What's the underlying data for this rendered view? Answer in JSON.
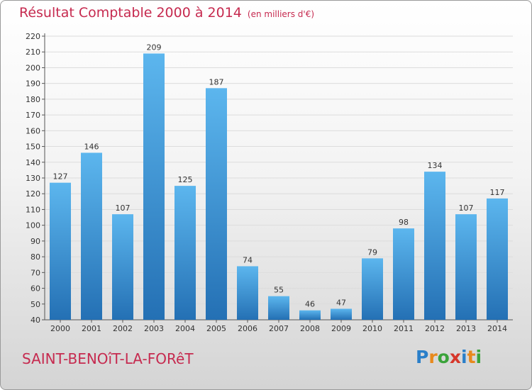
{
  "chart_data": {
    "type": "bar",
    "title": "Résultat Comptable 2000 à 2014",
    "subtitle": "(en milliers d'€)",
    "categories": [
      "2000",
      "2001",
      "2002",
      "2003",
      "2004",
      "2005",
      "2006",
      "2007",
      "2008",
      "2009",
      "2010",
      "2011",
      "2012",
      "2013",
      "2014"
    ],
    "values": [
      127,
      146,
      107,
      209,
      125,
      187,
      74,
      55,
      46,
      47,
      79,
      98,
      134,
      107,
      117
    ],
    "ylim": [
      40,
      220
    ],
    "ytick_step": 10,
    "grid": true,
    "xlabel": "",
    "ylabel": ""
  },
  "commune": "SAINT-BENOîT-LA-FORêT",
  "logo": {
    "letters": [
      "P",
      "r",
      "o",
      "x",
      "i",
      "t",
      "i"
    ],
    "colors": [
      "#2a7fc9",
      "#e8891c",
      "#3aa33a",
      "#d6372b",
      "#2a7fc9",
      "#e8891c",
      "#3aa33a"
    ]
  },
  "colors": {
    "bar_top": "#5cb6ee",
    "bar_bottom": "#2470b4",
    "accent": "#c62a4f"
  }
}
